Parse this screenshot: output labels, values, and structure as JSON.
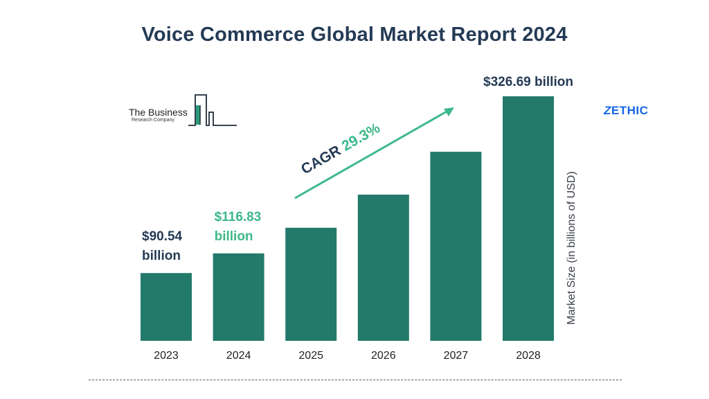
{
  "title": "Voice Commerce Global Market Report 2024",
  "logo_left": {
    "line1": "The Business",
    "line2": "Research Company",
    "icon": "city-bars-icon"
  },
  "logo_right": {
    "mark": "Z",
    "text": "ETHIC"
  },
  "cagr": {
    "label": "CAGR",
    "value": "29.3%"
  },
  "colors": {
    "bar": "#237a6a",
    "title": "#243a55",
    "accent": "#3db88a",
    "dark_label": "#243a55",
    "logo_blue": "#1565e8"
  },
  "chart_data": {
    "type": "bar",
    "title": "Voice Commerce Global Market Report 2024",
    "ylabel": "Market Size (in billions of USD)",
    "xlabel": "",
    "categories": [
      "2023",
      "2024",
      "2025",
      "2026",
      "2027",
      "2028"
    ],
    "values": [
      90.54,
      116.83,
      151.06,
      195.32,
      252.55,
      326.69
    ],
    "ylim": [
      0,
      326.69
    ],
    "grid": false,
    "data_labels": [
      {
        "category": "2023",
        "line1": "$90.54",
        "line2": "billion",
        "color": "dark"
      },
      {
        "category": "2024",
        "line1": "$116.83",
        "line2": "billion",
        "color": "accent"
      },
      {
        "category": "2028",
        "line1": "$326.69 billion",
        "line2": "",
        "color": "dark"
      }
    ]
  }
}
